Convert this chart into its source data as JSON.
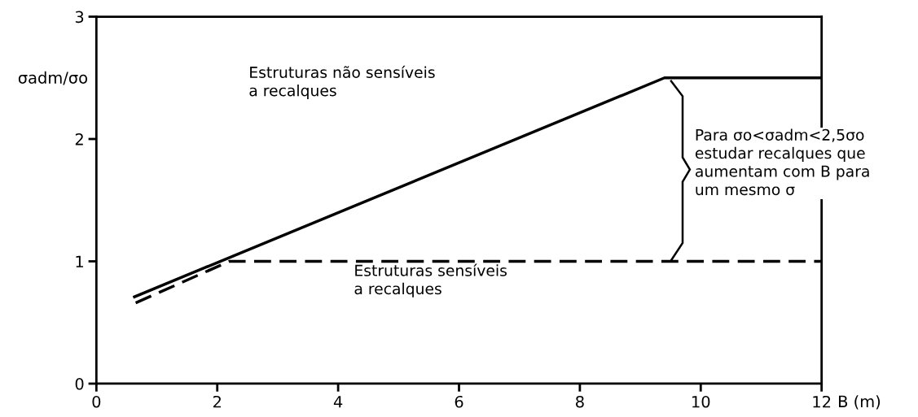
{
  "chart_data": {
    "type": "line",
    "xlabel": "B (m)",
    "ylabel": "σadm/σo",
    "xlim": [
      0,
      12
    ],
    "ylim": [
      0,
      3
    ],
    "xticks": [
      0,
      2,
      4,
      6,
      8,
      10,
      12
    ],
    "yticks": [
      0,
      1,
      2,
      3
    ],
    "grid": false,
    "marker": "none",
    "series": [
      {
        "color": "#000000",
        "line_style": "solid",
        "x": [
          0.63,
          9.4,
          12
        ],
        "values": [
          0.71,
          2.5,
          2.5
        ]
      },
      {
        "color": "#000000",
        "line_style": "dashed",
        "x": [
          0.65,
          2.2,
          12
        ],
        "values": [
          0.66,
          1.0,
          1.0
        ]
      }
    ],
    "annotations": [
      "Estruturas não sensíveis\na recalques",
      "Estruturas sensíveis\na recalques",
      "Para σo<σadm<2,5σo\nestudar recalques que\naumentam com B para\num mesmo σ"
    ]
  }
}
